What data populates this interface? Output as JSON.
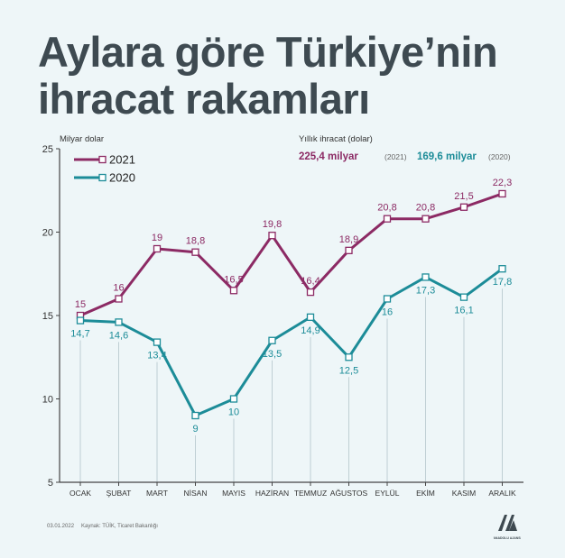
{
  "title_line1": "Aylara göre Türkiye’nin",
  "title_line2": "ihracat rakamları",
  "footer": {
    "date": "03.01.2022",
    "source": "Kaynak: TÜİK, Ticaret Bakanlığı"
  },
  "logo_text": "ANADOLU AJANSI",
  "summary": {
    "heading": "Yıllık ihracat (dolar)",
    "items": [
      {
        "value": "225,4 milyar",
        "year": "(2021)"
      },
      {
        "value": "169,6 milyar",
        "year": "(2020)"
      }
    ]
  },
  "colors": {
    "s2021": "#8c2a64",
    "s2020": "#1c8c98",
    "background": "#eef6f8",
    "title": "#3e4a51"
  },
  "chart_data": {
    "type": "line",
    "ylabel": "Milyar dolar",
    "ylim": [
      5,
      25
    ],
    "yticks": [
      5,
      10,
      15,
      20,
      25
    ],
    "categories": [
      "OCAK",
      "ŞUBAT",
      "MART",
      "NİSAN",
      "MAYIS",
      "HAZİRAN",
      "TEMMUZ",
      "AĞUSTOS",
      "EYLÜL",
      "EKİM",
      "KASIM",
      "ARALIK"
    ],
    "legend_position": "top-left",
    "series": [
      {
        "name": "2021",
        "values": [
          15,
          16,
          19,
          18.8,
          16.5,
          19.8,
          16.4,
          18.9,
          20.8,
          20.8,
          21.5,
          22.3
        ],
        "labels": [
          "15",
          "16",
          "19",
          "18,8",
          "16,5",
          "19,8",
          "16,4",
          "18,9",
          "20,8",
          "20,8",
          "21,5",
          "22,3"
        ]
      },
      {
        "name": "2020",
        "values": [
          14.7,
          14.6,
          13.4,
          9,
          10,
          13.5,
          14.9,
          12.5,
          16,
          17.3,
          16.1,
          17.8
        ],
        "labels": [
          "14,7",
          "14,6",
          "13,4",
          "9",
          "10",
          "13,5",
          "14,9",
          "12,5",
          "16",
          "17,3",
          "16,1",
          "17,8"
        ]
      }
    ]
  }
}
